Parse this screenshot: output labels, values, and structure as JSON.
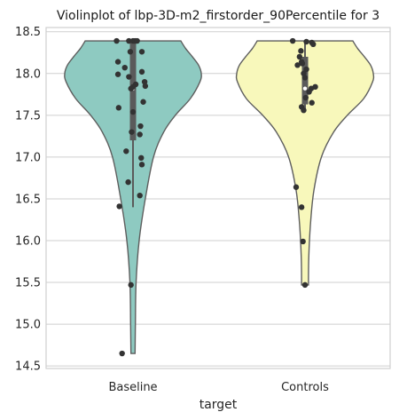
{
  "chart_data": {
    "type": "violin",
    "title": "Violinplot of lbp-3D-m2_firstorder_90Percentile for 3",
    "xlabel": "target",
    "ylabel": "",
    "ylim": [
      14.47,
      18.55
    ],
    "yticks": [
      14.5,
      15.0,
      15.5,
      16.0,
      16.5,
      17.0,
      17.5,
      18.0,
      18.5
    ],
    "ytick_labels": [
      "14.5",
      "15.0",
      "15.5",
      "16.0",
      "16.5",
      "17.0",
      "17.5",
      "18.0",
      "18.5"
    ],
    "grid": true,
    "categories": [
      "Baseline",
      "Controls"
    ],
    "series": [
      {
        "category": "Baseline",
        "color": "#8ecac1",
        "min": 14.65,
        "max": 18.39,
        "box": {
          "q1": 17.2,
          "median": 17.82,
          "q3": 18.39,
          "whisker_low": 16.4,
          "whisker_high": 18.39
        },
        "density": [
          [
            14.65,
            0.03
          ],
          [
            15.0,
            0.035
          ],
          [
            15.5,
            0.045
          ],
          [
            16.0,
            0.09
          ],
          [
            16.5,
            0.18
          ],
          [
            17.0,
            0.3
          ],
          [
            17.3,
            0.45
          ],
          [
            17.5,
            0.62
          ],
          [
            17.7,
            0.84
          ],
          [
            17.9,
            0.98
          ],
          [
            18.0,
            1.0
          ],
          [
            18.1,
            0.96
          ],
          [
            18.2,
            0.87
          ],
          [
            18.3,
            0.77
          ],
          [
            18.39,
            0.7
          ]
        ],
        "points": [
          [
            18.39,
            -0.24
          ],
          [
            18.39,
            -0.06
          ],
          [
            18.39,
            0.0
          ],
          [
            18.39,
            0.03
          ],
          [
            18.39,
            0.06
          ],
          [
            18.26,
            -0.04
          ],
          [
            18.26,
            0.13
          ],
          [
            18.14,
            -0.22
          ],
          [
            18.07,
            -0.12
          ],
          [
            18.02,
            0.13
          ],
          [
            17.99,
            -0.22
          ],
          [
            17.96,
            -0.06
          ],
          [
            17.9,
            0.17
          ],
          [
            17.87,
            0.04
          ],
          [
            17.85,
            0.18
          ],
          [
            17.84,
            0.0
          ],
          [
            17.82,
            -0.03
          ],
          [
            17.66,
            0.15
          ],
          [
            17.59,
            -0.21
          ],
          [
            17.54,
            0.0
          ],
          [
            17.37,
            0.11
          ],
          [
            17.3,
            -0.02
          ],
          [
            17.27,
            0.1
          ],
          [
            17.07,
            -0.1
          ],
          [
            16.99,
            0.12
          ],
          [
            16.91,
            0.13
          ],
          [
            16.7,
            -0.07
          ],
          [
            16.54,
            0.1
          ],
          [
            16.41,
            -0.2
          ],
          [
            15.47,
            -0.03
          ],
          [
            14.65,
            -0.16
          ]
        ]
      },
      {
        "category": "Controls",
        "color": "#f8f8bb",
        "min": 15.47,
        "max": 18.39,
        "box": {
          "q1": 17.63,
          "median": 17.82,
          "q3": 18.2,
          "whisker_low": 17.55,
          "whisker_high": 18.39
        },
        "density": [
          [
            15.47,
            0.05
          ],
          [
            15.8,
            0.055
          ],
          [
            16.2,
            0.08
          ],
          [
            16.6,
            0.13
          ],
          [
            17.0,
            0.24
          ],
          [
            17.3,
            0.42
          ],
          [
            17.5,
            0.62
          ],
          [
            17.7,
            0.86
          ],
          [
            17.9,
            0.99
          ],
          [
            18.0,
            1.0
          ],
          [
            18.1,
            0.96
          ],
          [
            18.2,
            0.87
          ],
          [
            18.3,
            0.77
          ],
          [
            18.39,
            0.7
          ]
        ],
        "points": [
          [
            18.39,
            -0.18
          ],
          [
            18.38,
            0.02
          ],
          [
            18.37,
            0.1
          ],
          [
            18.35,
            0.12
          ],
          [
            18.27,
            -0.06
          ],
          [
            18.2,
            -0.08
          ],
          [
            18.14,
            -0.05
          ],
          [
            18.12,
            -0.04
          ],
          [
            18.1,
            -0.11
          ],
          [
            18.05,
            0.02
          ],
          [
            18.0,
            -0.02
          ],
          [
            17.95,
            0.0
          ],
          [
            17.84,
            0.15
          ],
          [
            17.82,
            0.09
          ],
          [
            17.78,
            0.06
          ],
          [
            17.71,
            0.01
          ],
          [
            17.65,
            0.1
          ],
          [
            17.6,
            -0.05
          ],
          [
            17.56,
            -0.02
          ],
          [
            16.64,
            -0.13
          ],
          [
            16.4,
            -0.05
          ],
          [
            15.99,
            -0.03
          ],
          [
            15.47,
            0.0
          ]
        ]
      }
    ]
  }
}
